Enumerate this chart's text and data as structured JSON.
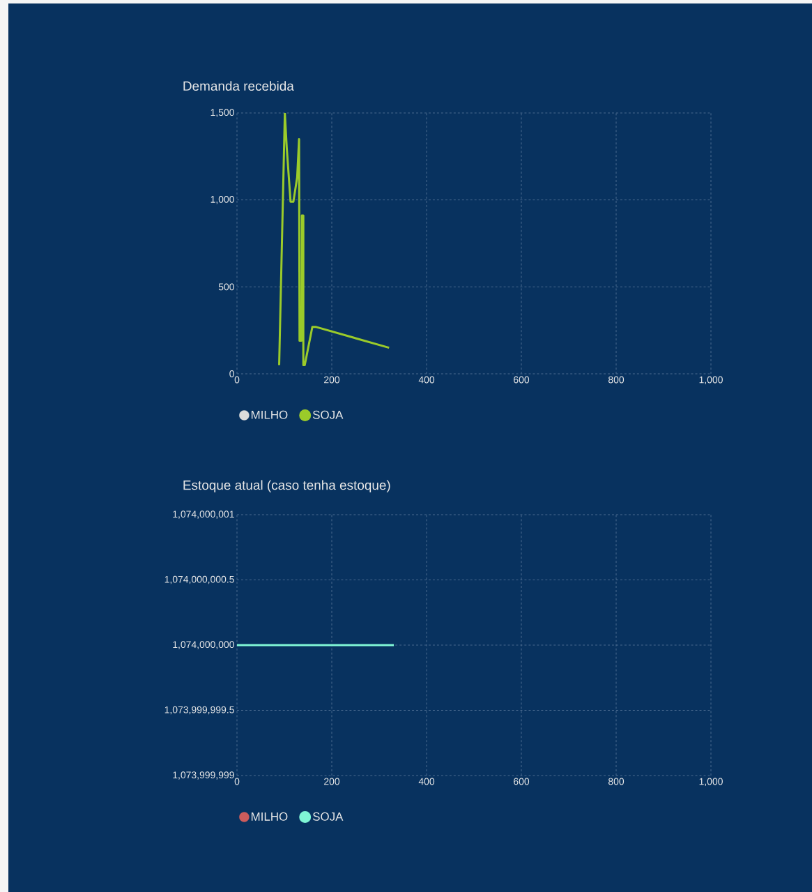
{
  "chart_data": [
    {
      "type": "line",
      "title": "Demanda recebida",
      "xlim": [
        0,
        1000
      ],
      "ylim": [
        0,
        1500
      ],
      "xticks": [
        0,
        200,
        400,
        600,
        800,
        {
          "value": 1000,
          "label": "1,000"
        }
      ],
      "yticks": [
        0,
        500,
        {
          "value": 1000,
          "label": "1,000"
        },
        {
          "value": 1500,
          "label": "1,500"
        }
      ],
      "grid": true,
      "legend": "bottom",
      "marker": "none",
      "series": [
        {
          "name": "MILHO",
          "color": "#dcdcdc"
        },
        {
          "name": "SOJA",
          "color": "#9bcb2a",
          "x": [
            89,
            101,
            105,
            113,
            119,
            127,
            131,
            132,
            136,
            137,
            140,
            140,
            143,
            159,
            166,
            321
          ],
          "values": [
            50,
            1500,
            1300,
            990,
            990,
            1130,
            1350,
            190,
            190,
            910,
            910,
            50,
            50,
            270,
            270,
            150
          ]
        }
      ]
    },
    {
      "type": "line",
      "title": "Estoque atual (caso tenha estoque)",
      "xlim": [
        0,
        1000
      ],
      "ylim": [
        1073999999,
        1074000001
      ],
      "xticks": [
        0,
        200,
        400,
        600,
        800,
        {
          "value": 1000,
          "label": "1,000"
        }
      ],
      "yticks": [
        {
          "value": 1073999999,
          "label": "1,073,999,999"
        },
        {
          "value": 1073999999.5,
          "label": "1,073,999,999.5"
        },
        {
          "value": 1074000000,
          "label": "1,074,000,000"
        },
        {
          "value": 1074000000.5,
          "label": "1,074,000,000.5"
        },
        {
          "value": 1074000001,
          "label": "1,074,000,001"
        }
      ],
      "grid": true,
      "legend": "bottom",
      "marker": "none",
      "series": [
        {
          "name": "MILHO",
          "color": "#cd5c5c"
        },
        {
          "name": "SOJA",
          "color": "#7ff5d5",
          "x": [
            0,
            331
          ],
          "values": [
            1074000000,
            1074000000
          ]
        }
      ]
    }
  ]
}
